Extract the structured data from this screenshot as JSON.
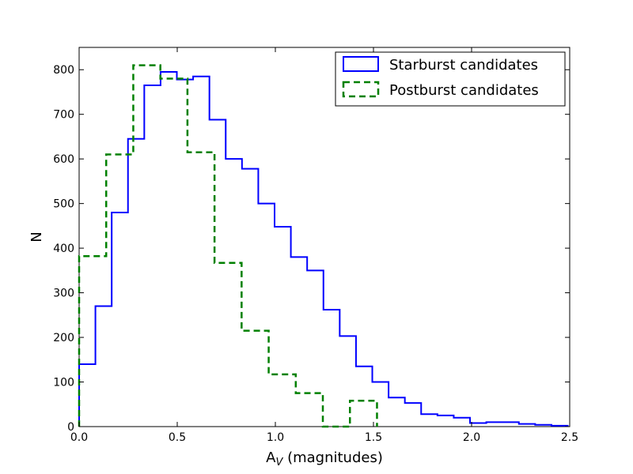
{
  "chart_data": {
    "type": "histogram",
    "xlabel_main": "A",
    "xlabel_sub": "V",
    "xlabel_rest": " (magnitudes)",
    "ylabel": "N",
    "xlim": [
      0.0,
      2.5
    ],
    "ylim": [
      0,
      850
    ],
    "x_ticks": [
      0.0,
      0.5,
      1.0,
      1.5,
      2.0,
      2.5
    ],
    "x_tick_labels": [
      "0.0",
      "0.5",
      "1.0",
      "1.5",
      "2.0",
      "2.5"
    ],
    "y_ticks": [
      0,
      100,
      200,
      300,
      400,
      500,
      600,
      700,
      800
    ],
    "y_tick_labels": [
      "0",
      "100",
      "200",
      "300",
      "400",
      "500",
      "600",
      "700",
      "800"
    ],
    "grid": false,
    "legend_position": "top-right",
    "series": [
      {
        "name": "Starburst candidates",
        "color": "#0000ff",
        "linestyle": "solid",
        "bin_edges": [
          0.0,
          0.083,
          0.166,
          0.249,
          0.332,
          0.415,
          0.498,
          0.581,
          0.664,
          0.747,
          0.83,
          0.913,
          0.996,
          1.079,
          1.162,
          1.245,
          1.328,
          1.411,
          1.494,
          1.577,
          1.66,
          1.743,
          1.826,
          1.909,
          1.992,
          2.075,
          2.158,
          2.241,
          2.324,
          2.407,
          2.49
        ],
        "counts": [
          140,
          270,
          480,
          645,
          765,
          795,
          778,
          785,
          688,
          600,
          578,
          500,
          448,
          380,
          350,
          262,
          203,
          135,
          100,
          65,
          53,
          28,
          25,
          20,
          8,
          10,
          10,
          6,
          4,
          2
        ]
      },
      {
        "name": "Postburst candidates",
        "color": "#008000",
        "linestyle": "dashed",
        "bin_edges": [
          0.0,
          0.138,
          0.276,
          0.414,
          0.552,
          0.69,
          0.828,
          0.966,
          1.104,
          1.242,
          1.38,
          1.518
        ],
        "counts": [
          382,
          610,
          810,
          780,
          615,
          367,
          215,
          117,
          75,
          0,
          58
        ]
      }
    ]
  }
}
